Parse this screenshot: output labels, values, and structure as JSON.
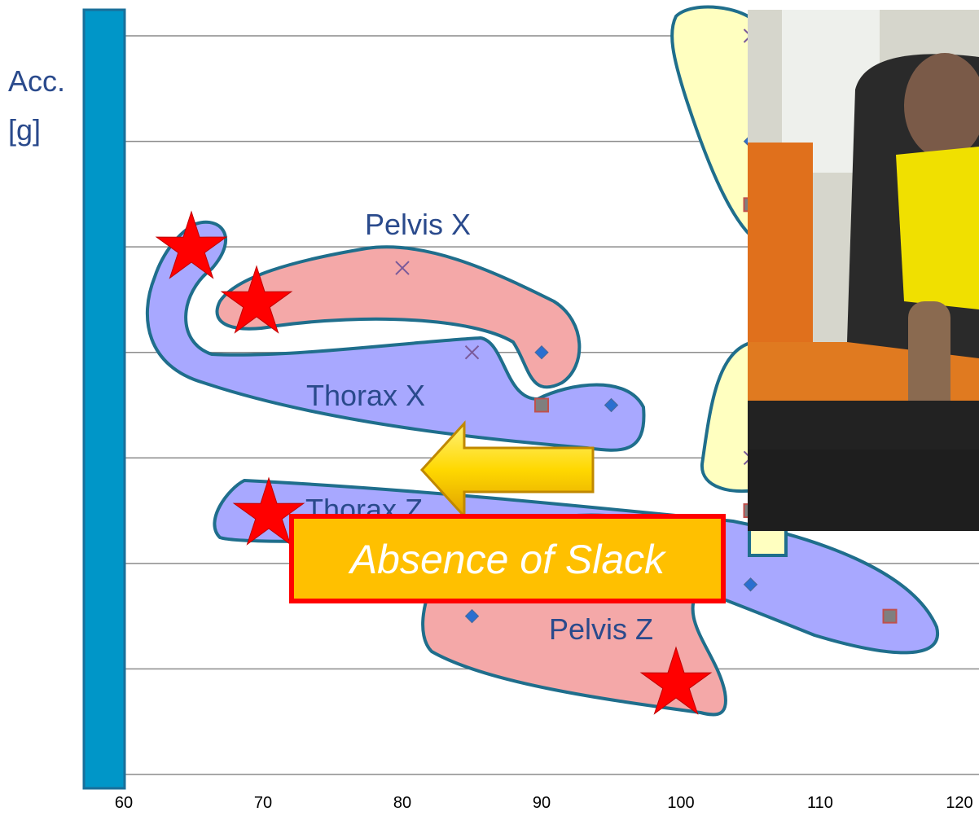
{
  "chart_data": {
    "type": "scatter",
    "y_label": [
      "Acc.",
      "[g]"
    ],
    "xlim": [
      60,
      120
    ],
    "xticks": [
      60,
      70,
      80,
      90,
      100,
      110,
      120
    ],
    "ylim": [
      0,
      7
    ],
    "yticks": [
      0,
      1,
      2,
      3,
      4,
      5,
      6,
      7
    ],
    "grid": true,
    "series": [
      {
        "marker": "diamond",
        "color": "#2a6fd0",
        "x": [
          85,
          90,
          95,
          105,
          105
        ],
        "values": [
          1.5,
          4.0,
          3.5,
          6.0,
          1.8
        ]
      },
      {
        "marker": "square",
        "color": "#7f7f7f",
        "x": [
          90,
          105,
          105,
          115
        ],
        "values": [
          3.5,
          5.4,
          2.5,
          1.5
        ]
      },
      {
        "marker": "x",
        "color": "#7a5a9a",
        "x": [
          80,
          85,
          105,
          105
        ],
        "values": [
          4.8,
          4.0,
          7.0,
          3.0
        ]
      }
    ],
    "annotations": [
      "Pelvis X",
      "Thorax X",
      "Thorax Z",
      "Pelvis Z"
    ],
    "callout": "Absence of Slack"
  }
}
